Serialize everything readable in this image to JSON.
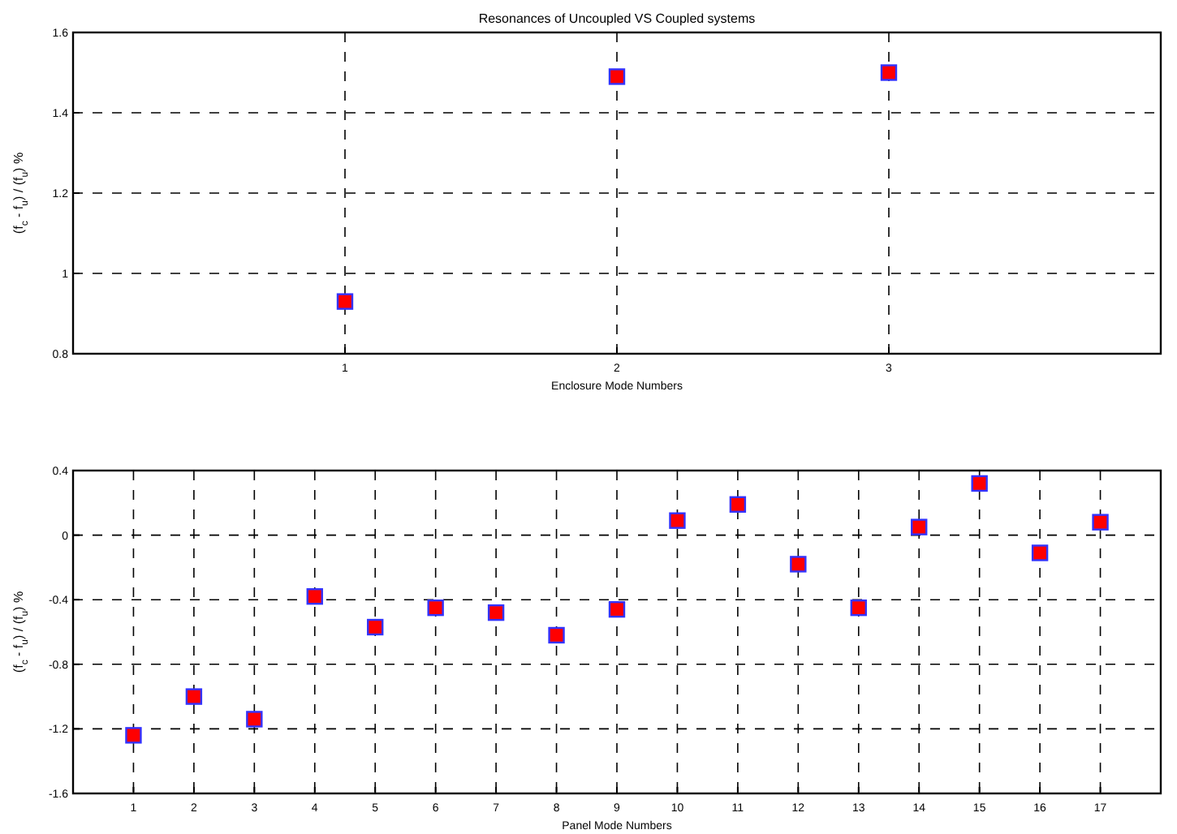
{
  "chart_data": [
    {
      "type": "scatter",
      "title": "Resonances of Uncoupled VS Coupled systems",
      "xlabel": "Enclosure Mode Numbers",
      "ylabel": "(f$_{c}$ - f$_{u}$) / (f$_{u}$) %",
      "x": [
        1,
        2,
        3
      ],
      "values": [
        0.93,
        1.49,
        1.5
      ],
      "color": "#ff0000",
      "marker": "square",
      "xlim": [
        0,
        4
      ],
      "xticks": [
        1,
        2,
        3
      ],
      "ylim": [
        0.8,
        1.6
      ],
      "yticks": [
        0.8,
        1,
        1.2,
        1.4,
        1.6
      ],
      "grid": true
    },
    {
      "type": "scatter",
      "xlabel": "Panel Mode Numbers",
      "ylabel": "(f$_{c}$ - f$_{u}$) / (f$_{u}$) %",
      "x": [
        1,
        2,
        3,
        4,
        5,
        6,
        7,
        8,
        9,
        10,
        11,
        12,
        13,
        14,
        15,
        16,
        17
      ],
      "values": [
        -1.24,
        -1.0,
        -1.14,
        -0.38,
        -0.57,
        -0.45,
        -0.48,
        -0.62,
        -0.46,
        0.09,
        0.19,
        -0.18,
        -0.45,
        0.05,
        0.32,
        -0.11,
        0.08
      ],
      "color": "#ff0000",
      "marker": "square",
      "xlim": [
        0,
        18
      ],
      "xticks": [
        1,
        2,
        3,
        4,
        5,
        6,
        7,
        8,
        9,
        10,
        11,
        12,
        13,
        14,
        15,
        16,
        17
      ],
      "ylim": [
        -1.6,
        0.4
      ],
      "yticks": [
        -1.6,
        -1.2,
        -0.8,
        -0.4,
        0,
        0.4
      ],
      "grid": true
    }
  ]
}
